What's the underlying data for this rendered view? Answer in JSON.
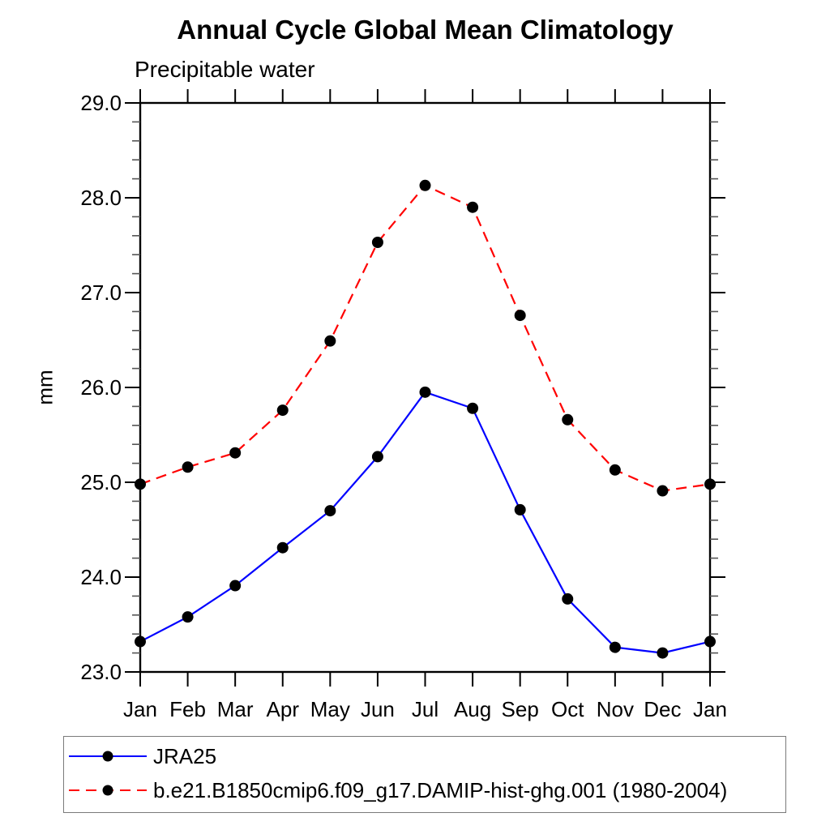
{
  "title": "Annual Cycle Global Mean Climatology",
  "subtitle": "Precipitable water",
  "ylabel": "mm",
  "colors": {
    "jra25_line": "#0000ff",
    "model_line": "#ff0000",
    "marker": "#000000",
    "axis": "#000000",
    "minor_tick": "#555555",
    "legend_border": "#7a7a7a"
  },
  "legend": {
    "entries": [
      {
        "label": "JRA25",
        "color": "#0000ff",
        "style": "solid"
      },
      {
        "label": "b.e21.B1850cmip6.f09_g17.DAMIP-hist-ghg.001 (1980-2004)",
        "color": "#ff0000",
        "style": "dashed"
      }
    ]
  },
  "chart_data": {
    "type": "line",
    "title": "Annual Cycle Global Mean Climatology",
    "subtitle": "Precipitable water",
    "xlabel": "",
    "ylabel": "mm",
    "categories": [
      "Jan",
      "Feb",
      "Mar",
      "Apr",
      "May",
      "Jun",
      "Jul",
      "Aug",
      "Sep",
      "Oct",
      "Nov",
      "Dec",
      "Jan"
    ],
    "ylim": [
      23.0,
      29.0
    ],
    "ytick_interval": 1.0,
    "yminor_interval": 0.2,
    "ytick_labels": [
      "23.0",
      "24.0",
      "25.0",
      "26.0",
      "27.0",
      "28.0",
      "29.0"
    ],
    "grid": false,
    "legend_position": "bottom-left-box",
    "marker": {
      "shape": "circle",
      "color": "#000000",
      "radius": 7
    },
    "series": [
      {
        "name": "JRA25",
        "color": "#0000ff",
        "dash": "solid",
        "values": [
          23.32,
          23.58,
          23.91,
          24.31,
          24.7,
          25.27,
          25.95,
          25.78,
          24.71,
          23.77,
          23.26,
          23.2,
          23.32
        ]
      },
      {
        "name": "b.e21.B1850cmip6.f09_g17.DAMIP-hist-ghg.001 (1980-2004)",
        "color": "#ff0000",
        "dash": "dashed",
        "values": [
          24.98,
          25.16,
          25.31,
          25.76,
          26.49,
          27.53,
          28.13,
          27.9,
          26.76,
          25.66,
          25.13,
          24.91,
          24.98
        ]
      }
    ]
  }
}
